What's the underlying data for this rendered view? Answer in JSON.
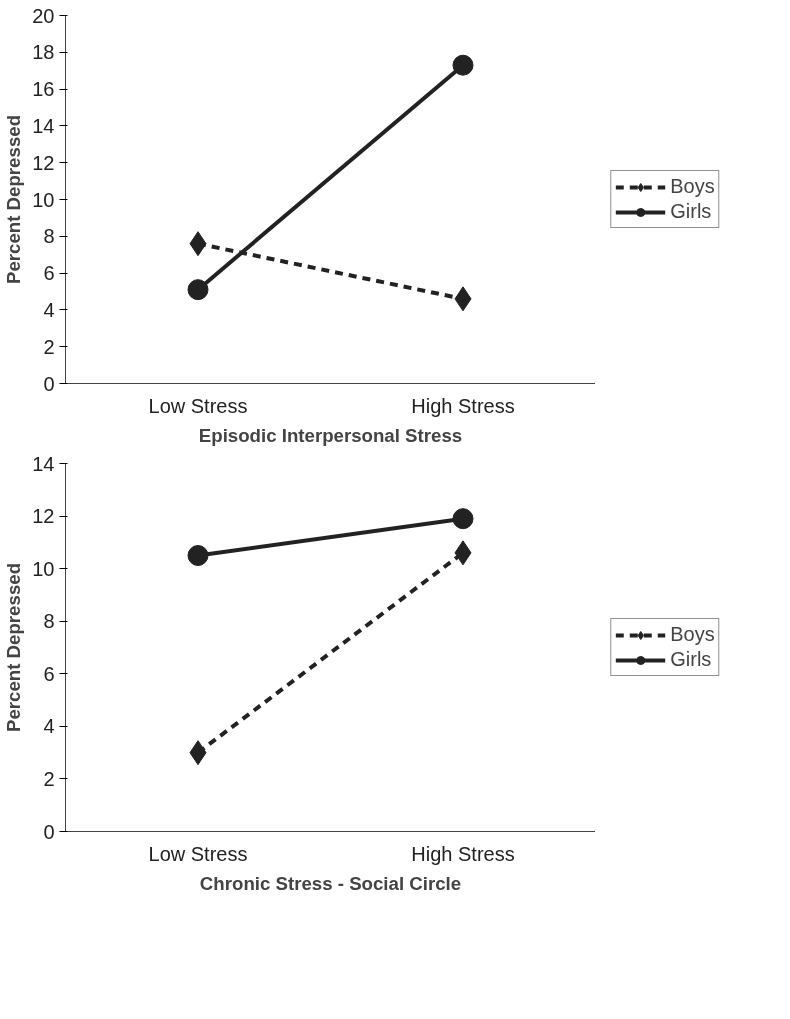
{
  "chart_data": [
    {
      "type": "line",
      "xlabel": "Episodic Interpersonal Stress",
      "ylabel": "Percent Depressed",
      "categories": [
        "Low Stress",
        "High Stress"
      ],
      "ylim": [
        0,
        20
      ],
      "yticks": [
        0,
        2,
        4,
        6,
        8,
        10,
        12,
        14,
        16,
        18,
        20
      ],
      "grid": false,
      "legend": "right",
      "series": [
        {
          "name": "Boys",
          "color": "#222222",
          "values": [
            7.6,
            4.6
          ],
          "marker": "diamond",
          "line_style": "dashed"
        },
        {
          "name": "Girls",
          "color": "#222222",
          "values": [
            5.1,
            17.3
          ],
          "marker": "circle",
          "line_style": "solid"
        }
      ]
    },
    {
      "type": "line",
      "xlabel": "Chronic Stress - Social Circle",
      "ylabel": "Percent Depressed",
      "categories": [
        "Low Stress",
        "High Stress"
      ],
      "ylim": [
        0,
        14
      ],
      "yticks": [
        0,
        2,
        4,
        6,
        8,
        10,
        12,
        14
      ],
      "grid": false,
      "legend": "right",
      "series": [
        {
          "name": "Boys",
          "color": "#222222",
          "values": [
            3.0,
            10.6
          ],
          "marker": "diamond",
          "line_style": "dashed"
        },
        {
          "name": "Girls",
          "color": "#222222",
          "values": [
            10.5,
            11.9
          ],
          "marker": "circle",
          "line_style": "solid"
        }
      ]
    }
  ]
}
